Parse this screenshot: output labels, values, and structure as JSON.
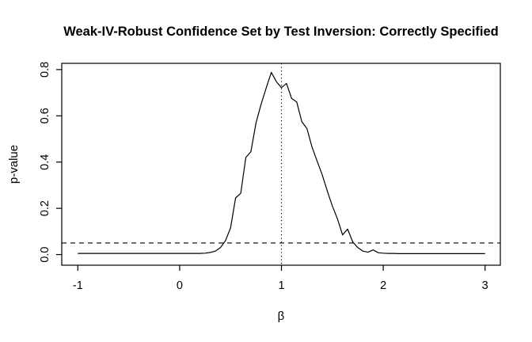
{
  "chart_data": {
    "type": "line",
    "title": "Weak-IV-Robust Confidence Set by Test Inversion: Correctly Specified",
    "xlabel": "β",
    "ylabel": "p-value",
    "xlim": [
      -1.158,
      3.15
    ],
    "ylim": [
      -0.046,
      0.827
    ],
    "grid": "off",
    "x_ticks": [
      -1,
      0,
      1,
      2,
      3
    ],
    "x_tick_labels": [
      "-1",
      "0",
      "1",
      "2",
      "3"
    ],
    "y_ticks": [
      0,
      0.2,
      0.4,
      0.6,
      0.8
    ],
    "y_tick_labels": [
      "0.0",
      "0.2",
      "0.4",
      "0.6",
      "0.8"
    ],
    "reference_lines": {
      "significance_level_dashed_y": 0.05,
      "beta_true_dotted_x": 1
    },
    "colors": {
      "line": "#000000",
      "reference": "#000000",
      "background": "#ffffff"
    },
    "series": [
      {
        "name": "p-value",
        "x": [
          -1,
          -0.95,
          -0.9,
          -0.85,
          -0.8,
          -0.75,
          -0.7,
          -0.65,
          -0.6,
          -0.55,
          -0.5,
          -0.45,
          -0.4,
          -0.35,
          -0.3,
          -0.25,
          -0.2,
          -0.15,
          -0.1,
          -0.05,
          0,
          0.05,
          0.1,
          0.15,
          0.2,
          0.25,
          0.3,
          0.35,
          0.4,
          0.45,
          0.5,
          0.55,
          0.6,
          0.65,
          0.7,
          0.75,
          0.8,
          0.85,
          0.9,
          0.95,
          1,
          1.05,
          1.1,
          1.15,
          1.2,
          1.25,
          1.3,
          1.35,
          1.4,
          1.45,
          1.5,
          1.55,
          1.6,
          1.65,
          1.7,
          1.75,
          1.8,
          1.85,
          1.9,
          1.95,
          2,
          2.05,
          2.1,
          2.15,
          2.2,
          2.25,
          2.3,
          2.35,
          2.4,
          2.45,
          2.5,
          2.55,
          2.6,
          2.65,
          2.7,
          2.75,
          2.8,
          2.85,
          2.9,
          2.95,
          3
        ],
        "y": [
          0.005,
          0.005,
          0.005,
          0.005,
          0.005,
          0.005,
          0.005,
          0.005,
          0.005,
          0.005,
          0.005,
          0.005,
          0.005,
          0.005,
          0.005,
          0.005,
          0.005,
          0.005,
          0.005,
          0.005,
          0.005,
          0.005,
          0.005,
          0.005,
          0.005,
          0.006,
          0.009,
          0.015,
          0.03,
          0.06,
          0.115,
          0.245,
          0.265,
          0.42,
          0.445,
          0.57,
          0.65,
          0.72,
          0.788,
          0.748,
          0.722,
          0.74,
          0.675,
          0.66,
          0.575,
          0.545,
          0.465,
          0.405,
          0.345,
          0.275,
          0.21,
          0.155,
          0.085,
          0.11,
          0.055,
          0.03,
          0.015,
          0.01,
          0.02,
          0.008,
          0.006,
          0.005,
          0.005,
          0.004,
          0.004,
          0.004,
          0.004,
          0.004,
          0.004,
          0.004,
          0.004,
          0.004,
          0.004,
          0.004,
          0.004,
          0.004,
          0.004,
          0.004,
          0.004,
          0.004,
          0.004
        ]
      }
    ]
  }
}
